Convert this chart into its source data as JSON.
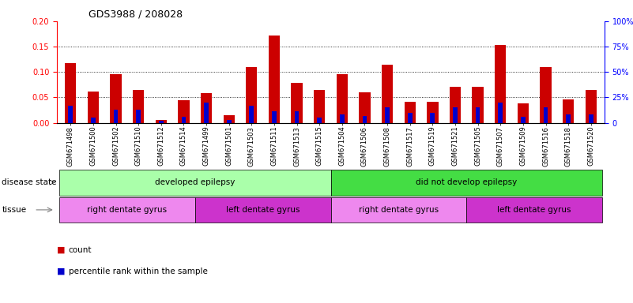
{
  "title": "GDS3988 / 208028",
  "samples": [
    "GSM671498",
    "GSM671500",
    "GSM671502",
    "GSM671510",
    "GSM671512",
    "GSM671514",
    "GSM671499",
    "GSM671501",
    "GSM671503",
    "GSM671511",
    "GSM671513",
    "GSM671515",
    "GSM671504",
    "GSM671506",
    "GSM671508",
    "GSM671517",
    "GSM671519",
    "GSM671521",
    "GSM671505",
    "GSM671507",
    "GSM671509",
    "GSM671516",
    "GSM671518",
    "GSM671520"
  ],
  "count": [
    0.118,
    0.061,
    0.096,
    0.064,
    0.005,
    0.044,
    0.058,
    0.015,
    0.11,
    0.172,
    0.078,
    0.065,
    0.096,
    0.06,
    0.115,
    0.041,
    0.042,
    0.07,
    0.07,
    0.153,
    0.038,
    0.11,
    0.046,
    0.065
  ],
  "percentile": [
    17,
    5,
    13,
    13,
    2,
    6,
    20,
    3,
    17,
    11,
    11,
    5,
    8,
    7,
    15,
    10,
    10,
    15,
    15,
    20,
    6,
    15,
    8,
    8
  ],
  "ylim_left": [
    0,
    0.2
  ],
  "ylim_right": [
    0,
    100
  ],
  "left_yticks": [
    0,
    0.05,
    0.1,
    0.15,
    0.2
  ],
  "right_yticks": [
    0,
    25,
    50,
    75,
    100
  ],
  "bar_color_red": "#cc0000",
  "bar_color_blue": "#0000cc",
  "disease_state_groups": [
    {
      "label": "developed epilepsy",
      "start": 0,
      "end": 11,
      "color": "#aaffaa"
    },
    {
      "label": "did not develop epilepsy",
      "start": 12,
      "end": 23,
      "color": "#44dd44"
    }
  ],
  "tissue_groups": [
    {
      "label": "right dentate gyrus",
      "start": 0,
      "end": 5,
      "color": "#ee88ee"
    },
    {
      "label": "left dentate gyrus",
      "start": 6,
      "end": 11,
      "color": "#cc33cc"
    },
    {
      "label": "right dentate gyrus",
      "start": 12,
      "end": 17,
      "color": "#ee88ee"
    },
    {
      "label": "left dentate gyrus",
      "start": 18,
      "end": 23,
      "color": "#cc33cc"
    }
  ]
}
